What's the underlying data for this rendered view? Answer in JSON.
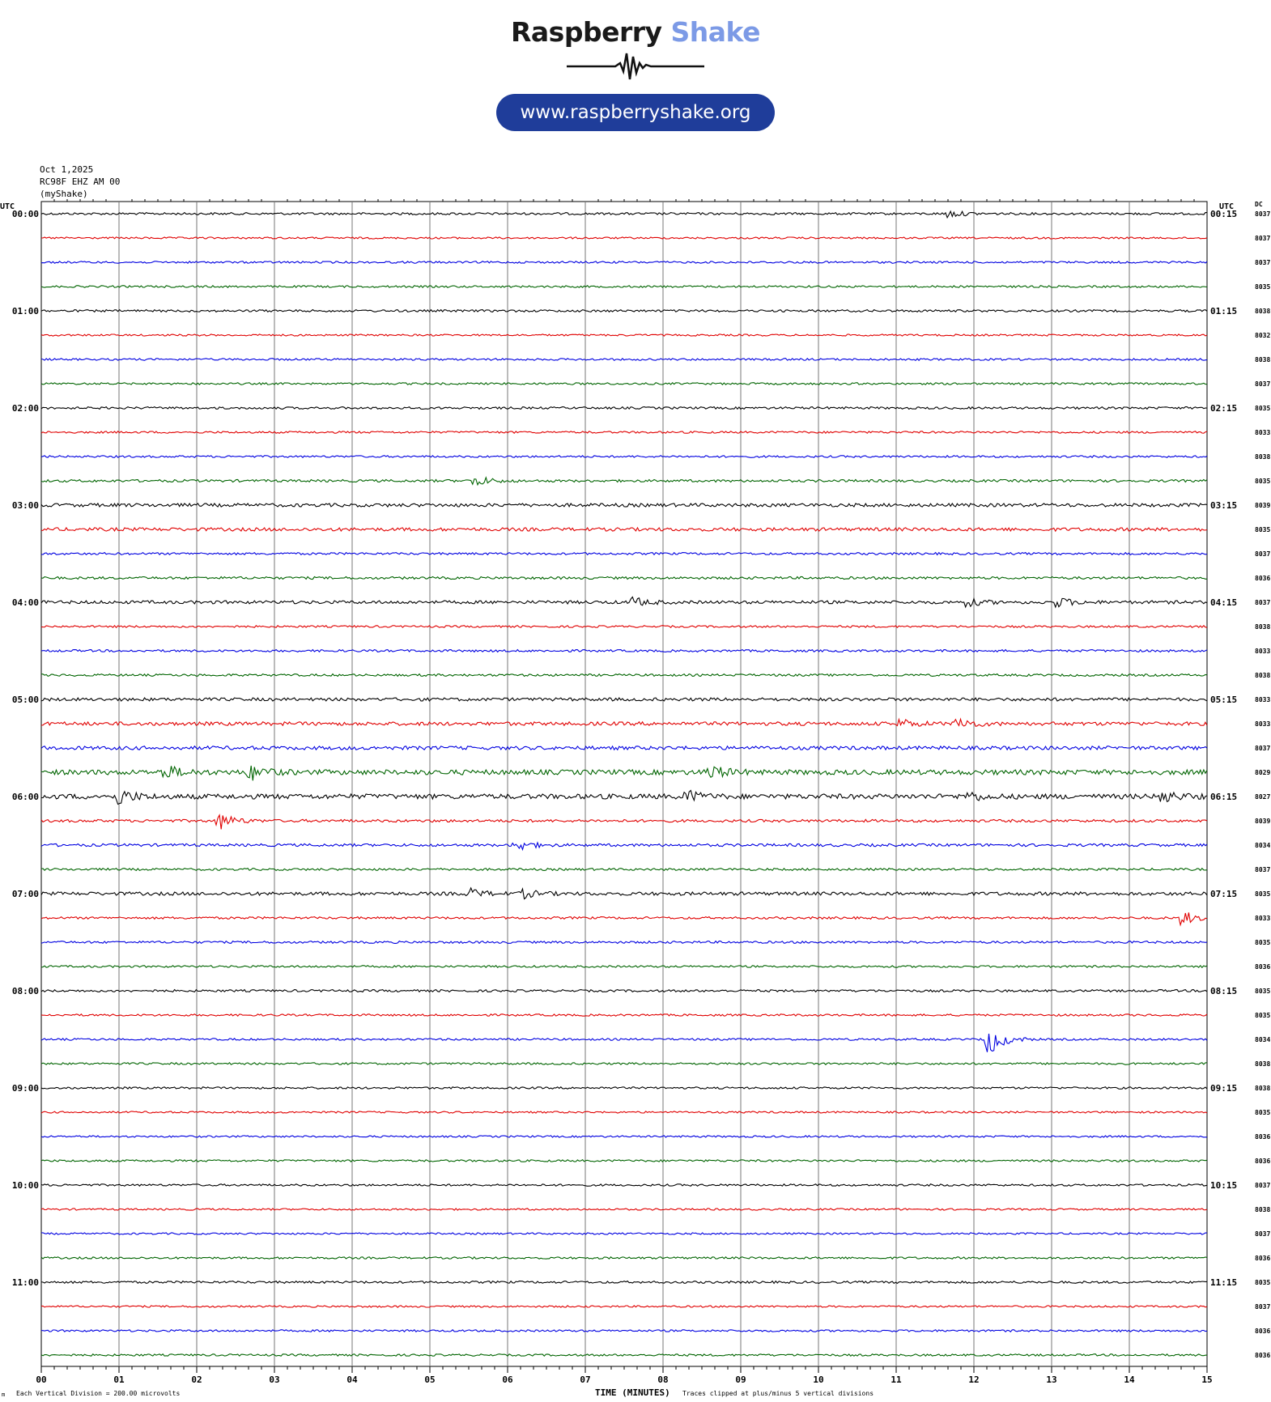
{
  "logo": {
    "brand_part1": "Raspberry",
    "brand_part2": "Shake",
    "url": "www.raspberryshake.org",
    "colors": {
      "dark": "#1a1a1a",
      "light": "#7c9ae6",
      "pill": "#1f3d9a"
    }
  },
  "header": {
    "date": "Oct 1,2025",
    "station": "RC98F EHZ AM 00",
    "network": "(myShake)"
  },
  "left_axis_title": "UTC",
  "right_axis_title": "UTC",
  "dc_title": "DC",
  "footer": {
    "division_note": "Each Vertical Division =  200.00 microvolts",
    "xlabel": "TIME (MINUTES)",
    "clip_note": "Traces clipped at plus/minus 5 vertical divisions",
    "corner_mark": "m"
  },
  "chart_data": {
    "type": "line",
    "subtype": "helicorder",
    "xlabel": "TIME (MINUTES)",
    "xlim": [
      0,
      15
    ],
    "x_ticks": [
      "00",
      "01",
      "02",
      "03",
      "04",
      "05",
      "06",
      "07",
      "08",
      "09",
      "10",
      "11",
      "12",
      "13",
      "14",
      "15"
    ],
    "grid": "vertical lines at each minute",
    "trace_colors": [
      "#000000",
      "#e00000",
      "#0000e0",
      "#006400"
    ],
    "left_hour_labels": [
      "00:00",
      "01:00",
      "02:00",
      "03:00",
      "04:00",
      "05:00",
      "06:00",
      "07:00",
      "08:00",
      "09:00",
      "10:00",
      "11:00"
    ],
    "right_hour_labels": [
      "00:15",
      "01:15",
      "02:15",
      "03:15",
      "04:15",
      "05:15",
      "06:15",
      "07:15",
      "08:15",
      "09:15",
      "10:15",
      "11:15"
    ],
    "rows_per_hour": 4,
    "dc_offsets": [
      "8037",
      "8037",
      "8037",
      "8035",
      "8038",
      "8032",
      "8038",
      "8037",
      "8035",
      "8033",
      "8038",
      "8035",
      "8039",
      "8035",
      "8037",
      "8036",
      "8037",
      "8038",
      "8033",
      "8038",
      "8033",
      "8033",
      "8037",
      "8029",
      "8027",
      "8039",
      "8034",
      "8037",
      "8035",
      "8033",
      "8035",
      "8036",
      "8035",
      "8035",
      "8034",
      "8038",
      "8038",
      "8035",
      "8036",
      "8036",
      "8037",
      "8038",
      "8037",
      "8036",
      "8035",
      "8037",
      "8036",
      "8036"
    ],
    "noise_level": [
      1.0,
      0.8,
      0.9,
      0.9,
      1.0,
      0.8,
      0.9,
      0.9,
      1.0,
      0.9,
      0.9,
      1.1,
      1.5,
      1.5,
      1.0,
      1.1,
      1.4,
      0.9,
      1.0,
      1.0,
      1.4,
      1.6,
      1.6,
      2.2,
      2.2,
      1.2,
      1.2,
      1.0,
      1.5,
      1.0,
      1.0,
      0.9,
      1.0,
      0.9,
      0.9,
      0.9,
      0.9,
      0.8,
      0.8,
      0.9,
      0.9,
      0.8,
      0.8,
      0.9,
      1.0,
      0.8,
      0.9,
      0.9
    ],
    "events": [
      {
        "row": 0,
        "minute": 11.65,
        "amp": 5
      },
      {
        "row": 11,
        "minute": 5.6,
        "amp": 6
      },
      {
        "row": 16,
        "minute": 7.6,
        "amp": 6
      },
      {
        "row": 16,
        "minute": 11.9,
        "amp": 5
      },
      {
        "row": 16,
        "minute": 13.1,
        "amp": 5
      },
      {
        "row": 21,
        "minute": 11.8,
        "amp": 8
      },
      {
        "row": 21,
        "minute": 11.05,
        "amp": 5
      },
      {
        "row": 23,
        "minute": 1.6,
        "amp": 8
      },
      {
        "row": 23,
        "minute": 2.7,
        "amp": 9
      },
      {
        "row": 23,
        "minute": 8.6,
        "amp": 9
      },
      {
        "row": 24,
        "minute": 1.0,
        "amp": 9
      },
      {
        "row": 24,
        "minute": 8.3,
        "amp": 7
      },
      {
        "row": 24,
        "minute": 14.4,
        "amp": 8
      },
      {
        "row": 24,
        "minute": 11.9,
        "amp": 6
      },
      {
        "row": 25,
        "minute": 2.3,
        "amp": 10
      },
      {
        "row": 26,
        "minute": 6.1,
        "amp": 8
      },
      {
        "row": 28,
        "minute": 5.5,
        "amp": 6
      },
      {
        "row": 28,
        "minute": 6.2,
        "amp": 5
      },
      {
        "row": 29,
        "minute": 14.7,
        "amp": 8
      },
      {
        "row": 34,
        "minute": 12.2,
        "amp": 18
      }
    ]
  }
}
